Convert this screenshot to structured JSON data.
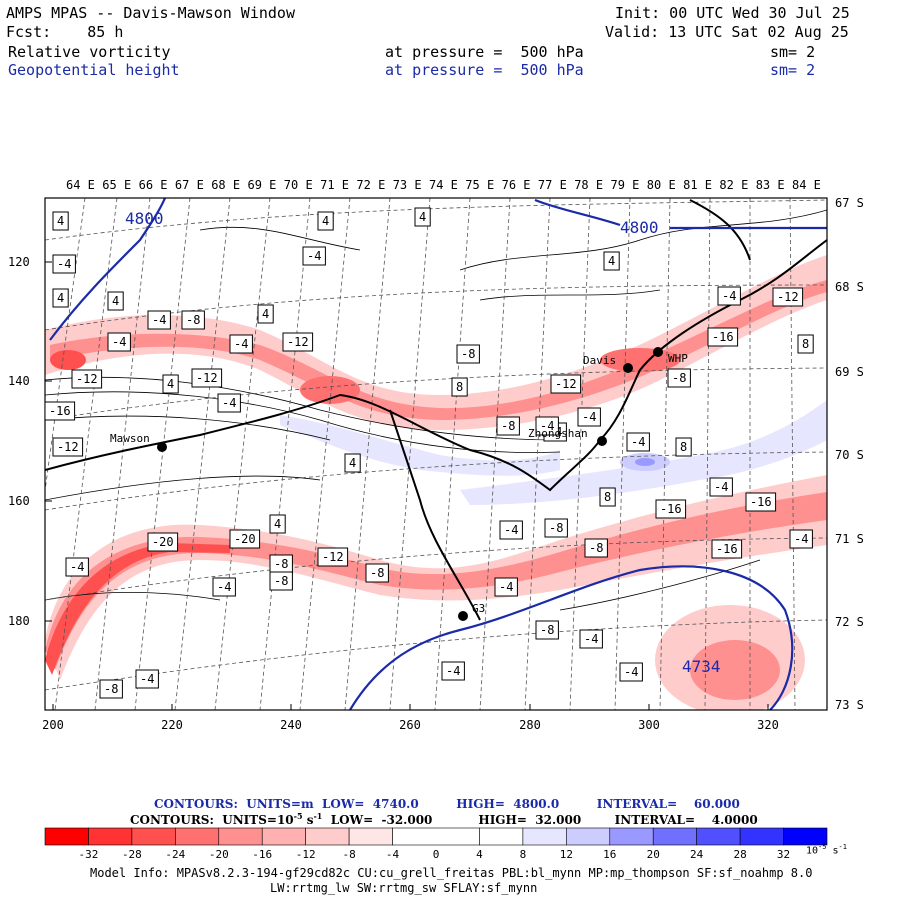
{
  "header": {
    "title": "AMPS MPAS -- Davis-Mawson Window",
    "fcst_label": "Fcst:",
    "fcst_value": "85 h",
    "init": "Init: 00 UTC Wed 30 Jul 25",
    "valid": "Valid: 13 UTC Sat 02 Aug 25",
    "field1": {
      "name": "Relative vorticity",
      "level": "at pressure =  500 hPa",
      "sm": "sm= 2"
    },
    "field2": {
      "name": "Geopotential height",
      "level": "at pressure =  500 hPa",
      "sm": "sm= 2"
    }
  },
  "map": {
    "lon_labels": [
      "64 E",
      "65 E",
      "66 E",
      "67 E",
      "68 E",
      "69 E",
      "70 E",
      "71 E",
      "72 E",
      "73 E",
      "74 E",
      "75 E",
      "76 E",
      "77 E",
      "78 E",
      "79 E",
      "80 E",
      "81 E",
      "82 E",
      "83 E",
      "84 E"
    ],
    "lat_labels": [
      "67 S",
      "68 S",
      "69 S",
      "70 S",
      "71 S",
      "72 S",
      "73 S"
    ],
    "y_ticks": [
      "120",
      "140",
      "160",
      "180"
    ],
    "x_ticks": [
      "200",
      "220",
      "240",
      "260",
      "280",
      "300",
      "320"
    ],
    "stations": [
      "Mawson",
      "Davis",
      "WHP",
      "Zhongshan",
      "G3"
    ],
    "height_labels": [
      "4800",
      "4800",
      "4734"
    ],
    "vorticity_labels": [
      "4",
      "-4",
      "4",
      "4",
      "-4",
      "-4",
      "-8",
      "-4",
      "4",
      "-8",
      "-12",
      "4",
      "-4",
      "-12",
      "4",
      "-12",
      "-16",
      "-12",
      "-4",
      "4",
      "8",
      "-8",
      "4",
      "-8",
      "-12",
      "-4",
      "-4",
      "-4",
      "4",
      "8",
      "-8",
      "-4",
      "8",
      "-4",
      "-4",
      "8",
      "-16",
      "-12",
      "4",
      "-20",
      "-20",
      "-12",
      "-8",
      "-4",
      "-8",
      "-8",
      "-16",
      "-16",
      "-4",
      "-16",
      "-4",
      "-4",
      "-4",
      "-8",
      "-4",
      "-8",
      "-4",
      "-4",
      "-8",
      "-4"
    ]
  },
  "legend": {
    "contours1": "CONTOURS:  UNITS=m  LOW=  4740.0         HIGH=  4800.0         INTERVAL=    60.000",
    "contours2": "CONTOURS:  UNITS=10",
    "contours2_exp": "-5",
    "contours2_rest": " s",
    "contours2_exp2": "-1",
    "contours2_tail": "  LOW=  -32.000           HIGH=  32.000        INTERVAL=    4.0000",
    "colorbar_ticks": [
      "-32",
      "-28",
      "-24",
      "-20",
      "-16",
      "-12",
      "-8",
      "-4",
      "0",
      "4",
      "8",
      "12",
      "16",
      "20",
      "24",
      "28",
      "32"
    ],
    "colorbar_unit": "10",
    "colorbar_unit_exp": "-5",
    "colorbar_unit_s": "s",
    "colorbar_unit_exp2": "-1",
    "colors": [
      "#ff0000",
      "#ff3333",
      "#ff5050",
      "#ff7070",
      "#ff9090",
      "#ffb0b0",
      "#ffcccc",
      "#ffe6e6",
      "#ffffff",
      "#ffffff",
      "#e6e6ff",
      "#ccccff",
      "#9999ff",
      "#7070ff",
      "#5050ff",
      "#3333ff",
      "#0000ff"
    ]
  },
  "model_info": {
    "line1": "Model Info: MPASv8.2.3-194-gf29cd82c CU:cu_grell_freitas PBL:bl_mynn MP:mp_thompson SF:sf_noahmp 8.0",
    "line2": "LW:rrtmg_lw SW:rrtmg_sw SFLAY:sf_mynn"
  }
}
